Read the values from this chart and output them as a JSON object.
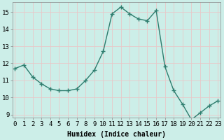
{
  "x": [
    0,
    1,
    2,
    3,
    4,
    5,
    6,
    7,
    8,
    9,
    10,
    11,
    12,
    13,
    14,
    15,
    16,
    17,
    18,
    19,
    20,
    21,
    22,
    23
  ],
  "y": [
    11.7,
    11.9,
    11.2,
    10.8,
    10.5,
    10.4,
    10.4,
    10.5,
    11.0,
    11.6,
    12.7,
    14.9,
    15.3,
    14.9,
    14.6,
    14.5,
    15.1,
    11.8,
    10.4,
    9.6,
    8.7,
    9.1,
    9.5,
    9.8
  ],
  "line_color": "#2e7d6e",
  "marker": "+",
  "marker_size": 4,
  "line_width": 1.0,
  "bg_color": "#cceee8",
  "grid_color": "#e8c8c8",
  "xlabel": "Humidex (Indice chaleur)",
  "ylim_min": 8.8,
  "ylim_max": 15.6,
  "xlim_min": -0.3,
  "xlim_max": 23.3,
  "yticks": [
    9,
    10,
    11,
    12,
    13,
    14,
    15
  ],
  "xticks": [
    0,
    1,
    2,
    3,
    4,
    5,
    6,
    7,
    8,
    9,
    10,
    11,
    12,
    13,
    14,
    15,
    16,
    17,
    18,
    19,
    20,
    21,
    22,
    23
  ],
  "xlabel_fontsize": 7,
  "tick_fontsize": 6.5
}
